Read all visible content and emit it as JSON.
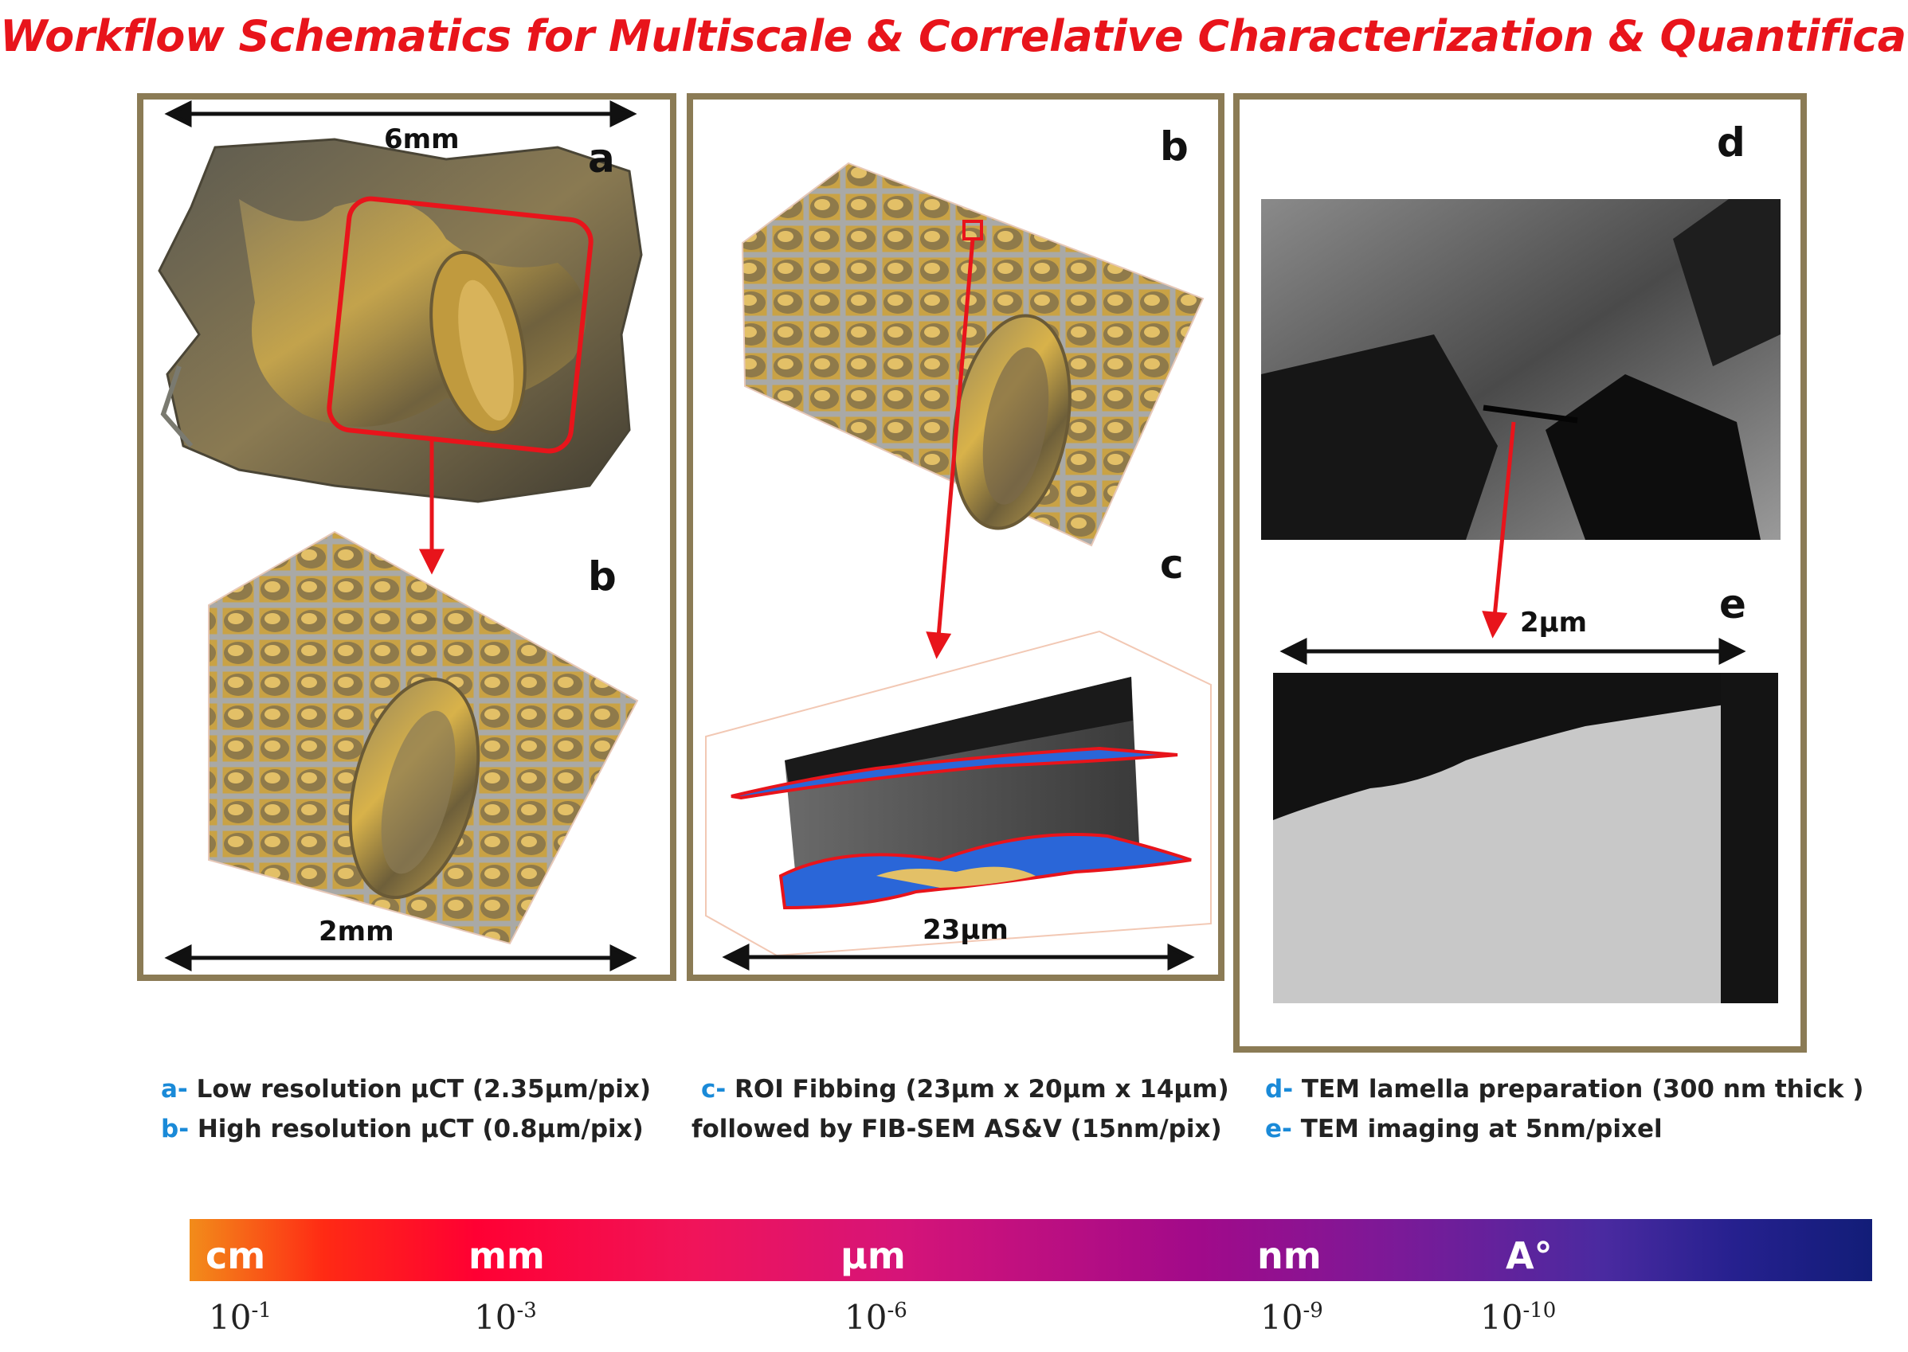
{
  "title": "Workflow Schematics for Multiscale & Correlative Characterization & Quantification",
  "panels": {
    "left": {
      "label_a": "a",
      "label_b": "b",
      "dim_top": "6mm",
      "dim_bottom": "2mm"
    },
    "middle": {
      "label_b": "b",
      "label_c": "c",
      "dim_bottom": "23μm"
    },
    "right": {
      "label_d": "d",
      "label_e": "e",
      "dim_middle": "2μm"
    }
  },
  "captions": {
    "a": {
      "key": "a-",
      "text": "Low resolution μCT (2.35μm/pix)"
    },
    "b": {
      "key": "b-",
      "text": "High resolution μCT (0.8μm/pix)"
    },
    "c": {
      "key": "c-",
      "text": "ROI Fibbing (23μm x 20μm x 14μm)"
    },
    "c2": {
      "text": "followed by FIB-SEM AS&V  (15nm/pix)"
    },
    "d": {
      "key": "d-",
      "text": "TEM lamella preparation (300 nm thick )"
    },
    "e": {
      "key": "e-",
      "text": "TEM imaging at 5nm/pixel"
    }
  },
  "scale": {
    "units": [
      "cm",
      "mm",
      "μm",
      "nm",
      "A°"
    ],
    "exponents": [
      {
        "base": "10",
        "power": "-1"
      },
      {
        "base": "10",
        "power": "-3"
      },
      {
        "base": "10",
        "power": "-6"
      },
      {
        "base": "10",
        "power": "-9"
      },
      {
        "base": "10",
        "power": "-10"
      }
    ]
  },
  "colors": {
    "title": "#e8141b",
    "frame": "#8b7b55",
    "caption_key": "#1a8ad8",
    "arrow": "#e8141b"
  }
}
